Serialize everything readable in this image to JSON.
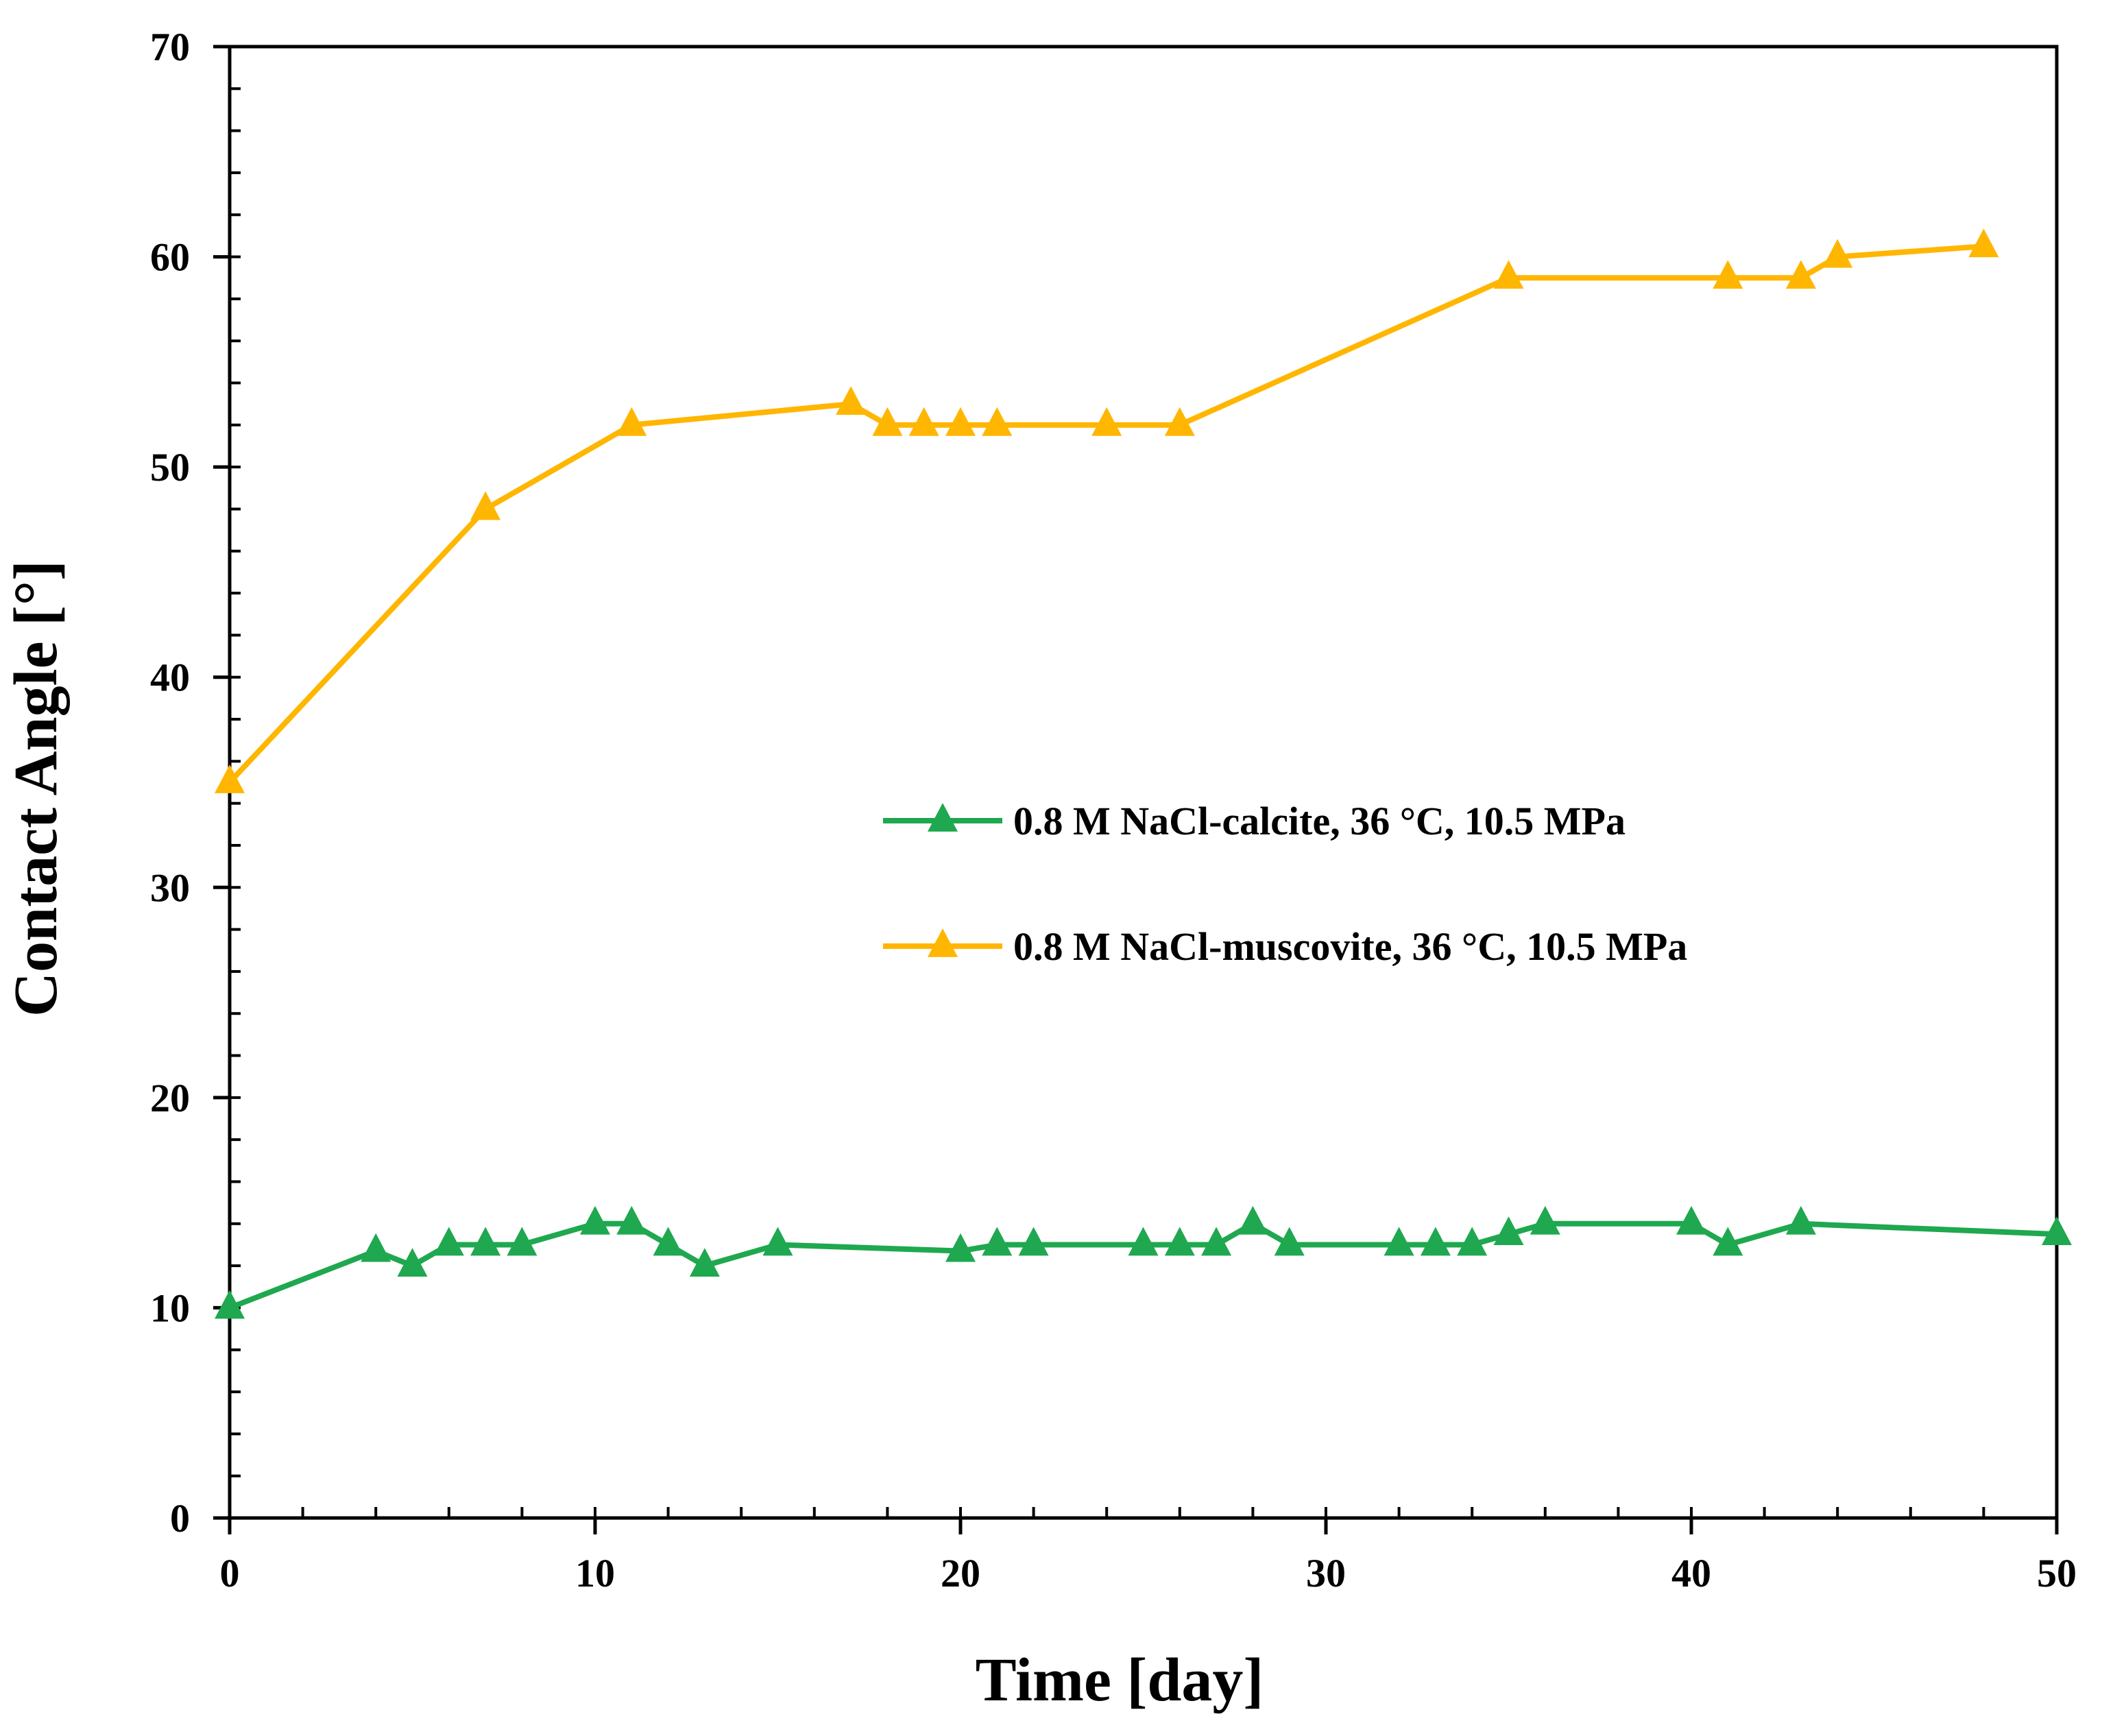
{
  "chart_data": {
    "type": "line",
    "title": "",
    "xlabel": "Time [day]",
    "ylabel": "Contact Angle [°]",
    "xlim": [
      0,
      50
    ],
    "ylim": [
      0,
      70
    ],
    "xticks": [
      0,
      10,
      20,
      30,
      40,
      50
    ],
    "yticks": [
      0,
      10,
      20,
      30,
      40,
      50,
      60,
      70
    ],
    "x_minor_step": 2,
    "y_minor_step": 2,
    "grid": false,
    "legend_position": "center-right",
    "series": [
      {
        "name": "0.8 M NaCl-calcite, 36 °C, 10.5 MPa",
        "color": "#1fa84f",
        "marker": "triangle",
        "x": [
          0,
          4,
          5,
          6,
          7,
          8,
          10,
          11,
          12,
          13,
          15,
          20,
          21,
          22,
          25,
          26,
          27,
          28,
          29,
          32,
          33,
          34,
          35,
          36,
          40,
          41,
          43,
          50
        ],
        "y": [
          10,
          12.7,
          12,
          13,
          13,
          13,
          14,
          14,
          13,
          12,
          13,
          12.7,
          13,
          13,
          13,
          13,
          13,
          14,
          13,
          13,
          13,
          13,
          13.5,
          14,
          14,
          13,
          14,
          13.5
        ]
      },
      {
        "name": "0.8 M NaCl-muscovite, 36 °C, 10.5 MPa",
        "color": "#ffb600",
        "marker": "triangle",
        "x": [
          0,
          7,
          11,
          17,
          18,
          19,
          20,
          21,
          24,
          26,
          35,
          41,
          43,
          44,
          48
        ],
        "y": [
          35,
          48,
          52,
          53,
          52,
          52,
          52,
          52,
          52,
          52,
          59,
          59,
          59,
          60,
          60.5
        ]
      }
    ]
  }
}
